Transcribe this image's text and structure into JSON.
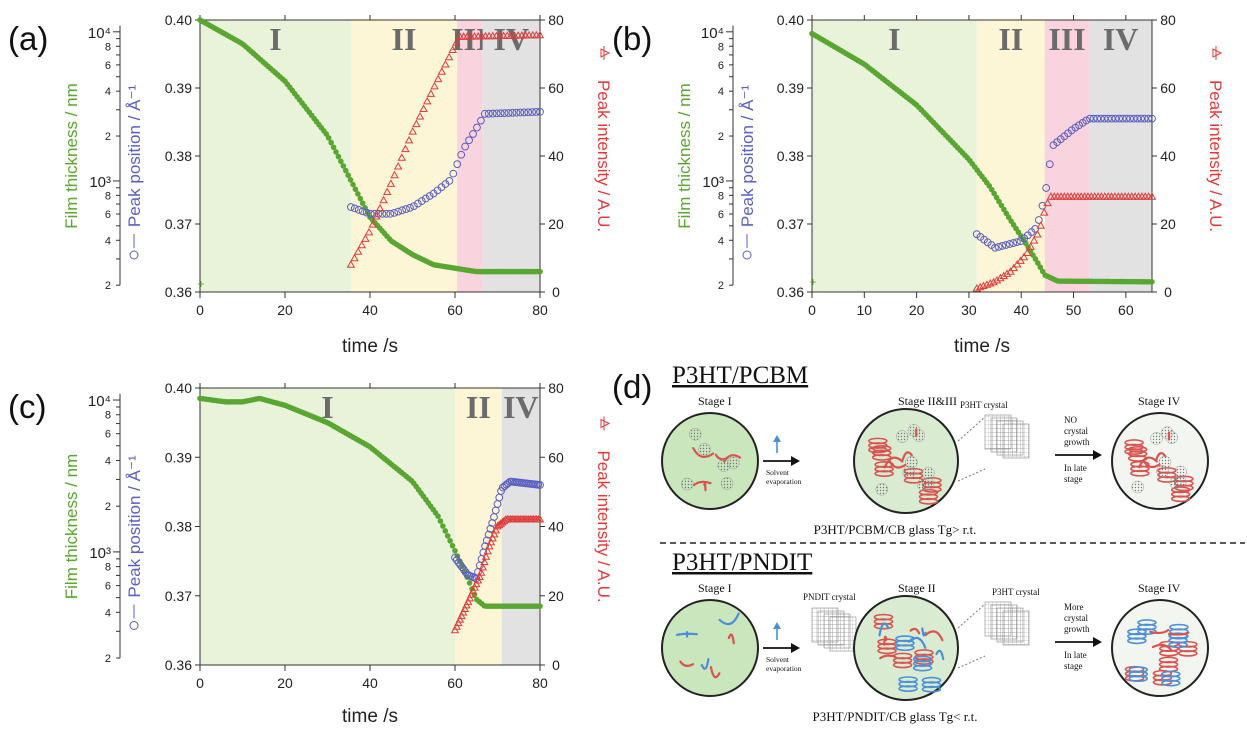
{
  "colors": {
    "green": "#5aa632",
    "blue": "#5a5fc0",
    "red": "#e03a3a",
    "stage1": "#e8f3da",
    "stage2": "#fdf6d6",
    "stage3": "#f9d3dd",
    "stage4": "#e2e2e2",
    "stage_label": "#6b6b6b"
  },
  "chart_data": [
    {
      "type": "scatter",
      "panel_label": "(a)",
      "xlabel": "time /s",
      "xlim": [
        0,
        80
      ],
      "x_ticks": [
        "0",
        "20",
        "40",
        "60",
        "80"
      ],
      "left_axis_1": {
        "label": "Film thickness / nm",
        "scale": "log",
        "ylim": [
          180,
          12000
        ],
        "tick_values": [
          200,
          300,
          400,
          500,
          600,
          700,
          800,
          900,
          1000,
          2000,
          3000,
          4000,
          5000,
          6000,
          7000,
          8000,
          9000,
          10000
        ],
        "labels": [
          "2",
          "4",
          "6",
          "8",
          "10³",
          "2",
          "4",
          "6",
          "8",
          "10⁴"
        ]
      },
      "left_axis_2": {
        "label": "Peak position / Å⁻¹",
        "ylim": [
          0.36,
          0.4
        ],
        "tick_labels": [
          "0.36",
          "0.37",
          "0.38",
          "0.39",
          "0.40"
        ]
      },
      "right_axis": {
        "label": "Peak intensity / A.U.",
        "ylim": [
          0,
          80
        ],
        "tick_labels": [
          "0",
          "20",
          "40",
          "60",
          "80"
        ]
      },
      "stages": [
        {
          "label": "I",
          "from": 0,
          "to": 35.5
        },
        {
          "label": "II",
          "from": 35.5,
          "to": 60.5
        },
        {
          "label": "III",
          "from": 60.5,
          "to": 66.5
        },
        {
          "label": "IV",
          "from": 66.5,
          "to": 80
        }
      ],
      "series": [
        {
          "name": "Film thickness / nm",
          "axis": "thickness",
          "curve": [
            [
              0,
              0.4
            ],
            [
              10,
              0.3965
            ],
            [
              20,
              0.391
            ],
            [
              30,
              0.383
            ],
            [
              35,
              0.377
            ],
            [
              40,
              0.371
            ],
            [
              45,
              0.3675
            ],
            [
              50,
              0.3655
            ],
            [
              55,
              0.364
            ],
            [
              60,
              0.3635
            ],
            [
              65,
              0.363
            ],
            [
              80,
              0.363
            ]
          ],
          "outlier": [
            0,
            0.3612
          ]
        },
        {
          "name": "Peak position / Å⁻¹",
          "axis": "position",
          "curve": [
            [
              35.5,
              0.3725
            ],
            [
              40,
              0.3715
            ],
            [
              45,
              0.3715
            ],
            [
              50,
              0.3725
            ],
            [
              55,
              0.3745
            ],
            [
              59,
              0.3765
            ],
            [
              62,
              0.381
            ],
            [
              65,
              0.384
            ],
            [
              67,
              0.3862
            ],
            [
              80,
              0.3865
            ]
          ]
        },
        {
          "name": "Peak intensity / A.U.",
          "axis": "intensity",
          "curve": [
            [
              35.5,
              8
            ],
            [
              40,
              18
            ],
            [
              45,
              32
            ],
            [
              50,
              47
            ],
            [
              55,
              60
            ],
            [
              59,
              70
            ],
            [
              61,
              75
            ],
            [
              80,
              75.5
            ]
          ]
        }
      ]
    },
    {
      "type": "scatter",
      "panel_label": "(b)",
      "xlabel": "time /s",
      "xlim": [
        0,
        65
      ],
      "x_ticks": [
        "0",
        "10",
        "20",
        "30",
        "40",
        "50",
        "60"
      ],
      "left_axis_1": {
        "label": "Film thickness / nm",
        "scale": "log",
        "ylim": [
          180,
          12000
        ],
        "tick_values": [
          200,
          300,
          400,
          500,
          600,
          700,
          800,
          900,
          1000,
          2000,
          3000,
          4000,
          5000,
          6000,
          7000,
          8000,
          9000,
          10000
        ],
        "labels": [
          "2",
          "4",
          "6",
          "8",
          "10³",
          "2",
          "4",
          "6",
          "8",
          "10⁴"
        ]
      },
      "left_axis_2": {
        "label": "Peak position / Å⁻¹",
        "ylim": [
          0.36,
          0.4
        ],
        "tick_labels": [
          "0.36",
          "0.37",
          "0.38",
          "0.39",
          "0.40"
        ]
      },
      "right_axis": {
        "label": "Peak intensity / A.U.",
        "ylim": [
          0,
          80
        ],
        "tick_labels": [
          "0",
          "20",
          "40",
          "60",
          "80"
        ]
      },
      "stages": [
        {
          "label": "I",
          "from": 0,
          "to": 31.5
        },
        {
          "label": "II",
          "from": 31.5,
          "to": 44.5
        },
        {
          "label": "III",
          "from": 44.5,
          "to": 53
        },
        {
          "label": "IV",
          "from": 53,
          "to": 65
        }
      ],
      "series": [
        {
          "name": "Film thickness / nm",
          "axis": "thickness",
          "curve": [
            [
              0,
              0.398
            ],
            [
              10,
              0.3935
            ],
            [
              20,
              0.3875
            ],
            [
              30,
              0.3795
            ],
            [
              34,
              0.3755
            ],
            [
              38,
              0.3705
            ],
            [
              41,
              0.367
            ],
            [
              43,
              0.3645
            ],
            [
              44.5,
              0.3625
            ],
            [
              47,
              0.3616
            ],
            [
              65,
              0.3615
            ]
          ],
          "outlier": [
            0,
            0.3615
          ]
        },
        {
          "name": "Peak position / Å⁻¹",
          "axis": "position",
          "curve": [
            [
              31.5,
              0.3685
            ],
            [
              35,
              0.3665
            ],
            [
              40,
              0.3675
            ],
            [
              43,
              0.3695
            ],
            [
              44.5,
              0.374
            ],
            [
              46,
              0.3815
            ],
            [
              50,
              0.384
            ],
            [
              53,
              0.3855
            ],
            [
              65,
              0.3855
            ]
          ]
        },
        {
          "name": "Peak intensity / A.U.",
          "axis": "intensity",
          "curve": [
            [
              31.5,
              1
            ],
            [
              35,
              3
            ],
            [
              38,
              6
            ],
            [
              41,
              11
            ],
            [
              43.5,
              18
            ],
            [
              44.5,
              24
            ],
            [
              45.5,
              28
            ],
            [
              65,
              28
            ]
          ]
        }
      ]
    },
    {
      "type": "scatter",
      "panel_label": "(c)",
      "xlabel": "time /s",
      "xlim": [
        0,
        80
      ],
      "x_ticks": [
        "0",
        "20",
        "40",
        "60",
        "80"
      ],
      "left_axis_1": {
        "label": "Film thickness / nm",
        "scale": "log",
        "ylim": [
          180,
          12000
        ],
        "tick_values": [
          200,
          300,
          400,
          500,
          600,
          700,
          800,
          900,
          1000,
          2000,
          3000,
          4000,
          5000,
          6000,
          7000,
          8000,
          9000,
          10000
        ],
        "labels": [
          "2",
          "4",
          "6",
          "8",
          "10³",
          "2",
          "4",
          "6",
          "8",
          "10⁴"
        ]
      },
      "left_axis_2": {
        "label": "Peak position / Å⁻¹",
        "ylim": [
          0.36,
          0.4
        ],
        "tick_labels": [
          "0.36",
          "0.37",
          "0.38",
          "0.39",
          "0.40"
        ]
      },
      "right_axis": {
        "label": "Peak intensity / A.U.",
        "ylim": [
          0,
          80
        ],
        "tick_labels": [
          "0",
          "20",
          "40",
          "60",
          "80"
        ]
      },
      "stages": [
        {
          "label": "I",
          "from": 0,
          "to": 60
        },
        {
          "label": "II",
          "from": 60,
          "to": 71
        },
        {
          "label": "IV",
          "from": 71,
          "to": 80
        }
      ],
      "series": [
        {
          "name": "Film thickness / nm",
          "axis": "thickness",
          "curve": [
            [
              0,
              0.3985
            ],
            [
              6,
              0.398
            ],
            [
              10,
              0.398
            ],
            [
              14,
              0.3985
            ],
            [
              20,
              0.3975
            ],
            [
              30,
              0.395
            ],
            [
              40,
              0.3915
            ],
            [
              50,
              0.3865
            ],
            [
              56,
              0.3815
            ],
            [
              60,
              0.3765
            ],
            [
              63,
              0.3725
            ],
            [
              65,
              0.3695
            ],
            [
              67,
              0.3685
            ],
            [
              80,
              0.3685
            ]
          ]
        },
        {
          "name": "Peak position / Å⁻¹",
          "axis": "position",
          "curve": [
            [
              60,
              0.3755
            ],
            [
              63,
              0.373
            ],
            [
              65,
              0.3725
            ],
            [
              67,
              0.377
            ],
            [
              69,
              0.381
            ],
            [
              71,
              0.3855
            ],
            [
              73,
              0.3865
            ],
            [
              80,
              0.386
            ]
          ]
        },
        {
          "name": "Peak intensity / A.U.",
          "axis": "intensity",
          "curve": [
            [
              60,
              10
            ],
            [
              63,
              18
            ],
            [
              66,
              26
            ],
            [
              68,
              34
            ],
            [
              70,
              40
            ],
            [
              72,
              42
            ],
            [
              80,
              42
            ]
          ]
        }
      ]
    }
  ],
  "panel_d": {
    "label": "(d)",
    "top": {
      "title": "P3HT/PCBM",
      "stage_a": "Stage I",
      "stage_b": "Stage II&III",
      "stage_c": "Stage IV",
      "crystal_label": "P3HT crystal",
      "arrow1_lines": [
        "Solvent",
        "evaporation"
      ],
      "arrow2_lines": [
        "NO",
        "crystal",
        "growth"
      ],
      "arrow2_sub": [
        "In late",
        "stage"
      ],
      "caption": "P3HT/PCBM/CB glass  Tg> r.t."
    },
    "bottom": {
      "title": "P3HT/PNDIT",
      "stage_a": "Stage I",
      "stage_b": "Stage II",
      "stage_c": "Stage IV",
      "crystal_label_left": "PNDIT crystal",
      "crystal_label_right": "P3HT crystal",
      "arrow1_lines": [
        "Solvent",
        "evaporation"
      ],
      "arrow2_lines": [
        "More",
        "crystal",
        "growth"
      ],
      "arrow2_sub": [
        "In late",
        "stage"
      ],
      "caption": "P3HT/PNDIT/CB glass  Tg< r.t."
    }
  }
}
